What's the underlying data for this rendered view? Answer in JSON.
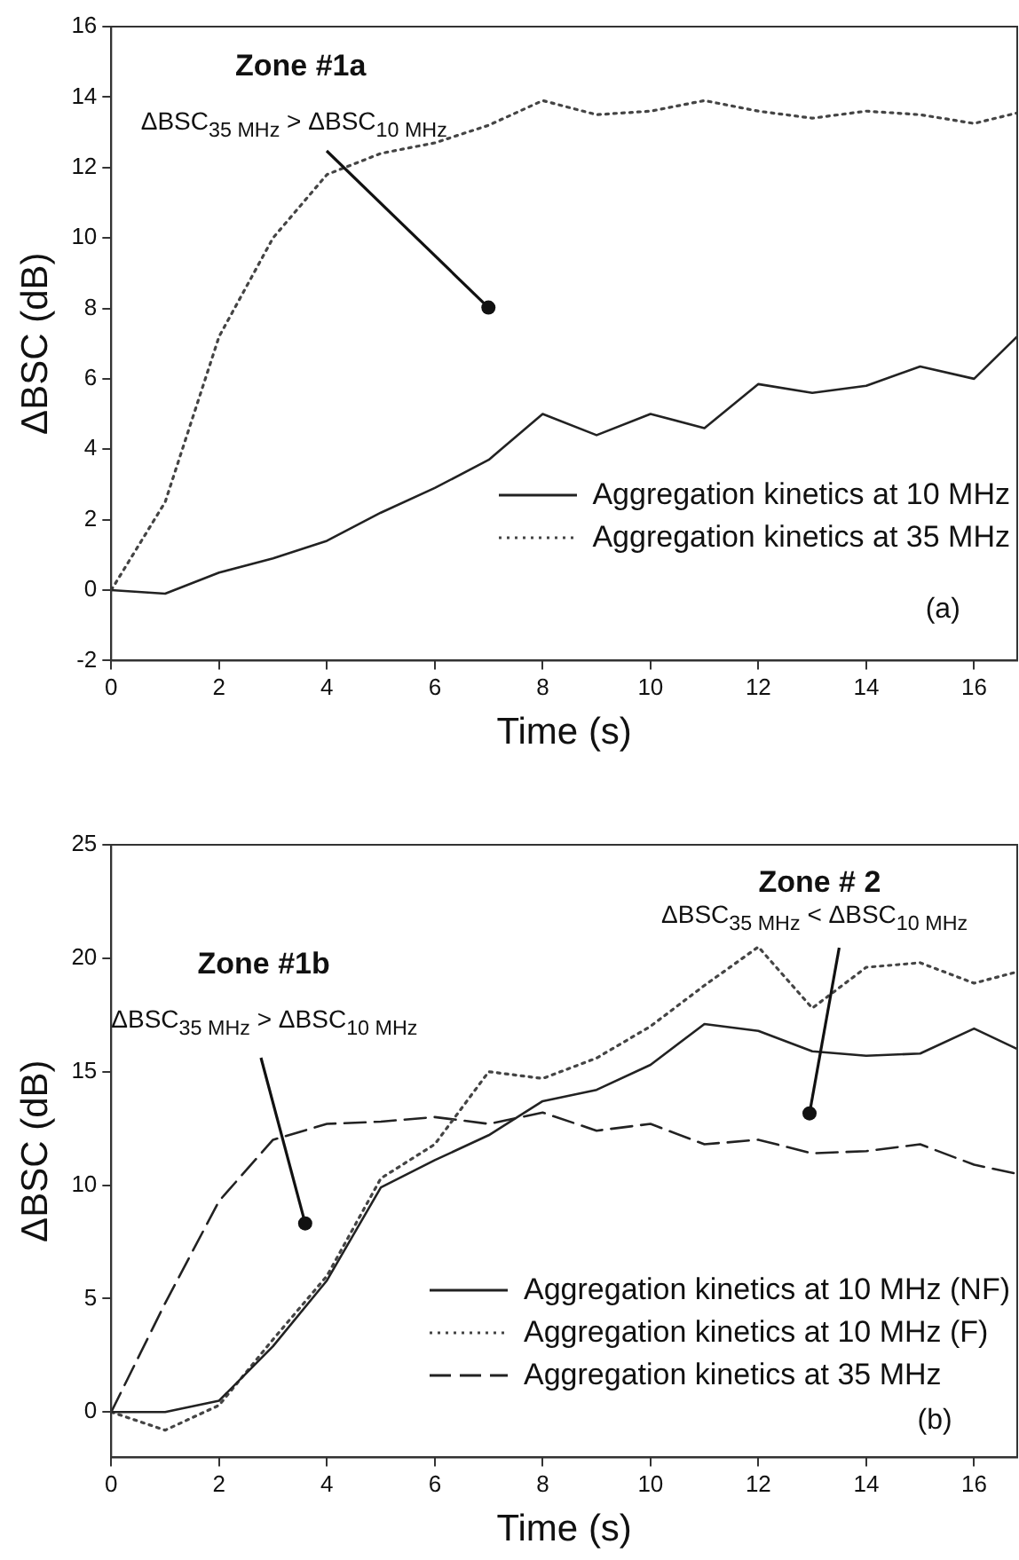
{
  "chart_data": [
    {
      "type": "line",
      "xlabel": "Time (s)",
      "ylabel": "ΔBSC (dB)",
      "x": [
        0,
        1,
        2,
        3,
        4,
        5,
        6,
        7,
        8,
        9,
        10,
        11,
        12,
        13,
        14,
        15,
        16,
        16.8
      ],
      "xlim": [
        0,
        16.8
      ],
      "xticks": [
        0,
        2,
        4,
        6,
        8,
        10,
        12,
        14,
        16
      ],
      "ylim": [
        -2,
        16
      ],
      "yticks": [
        -2,
        0,
        2,
        4,
        6,
        8,
        10,
        12,
        14,
        16
      ],
      "grid": false,
      "legend": "bottom right",
      "marker": "none",
      "series": [
        {
          "name": "Aggregation kinetics at 10 MHz",
          "color": "#222222",
          "line_style": "solid",
          "values": [
            0,
            -0.1,
            0.5,
            0.9,
            1.4,
            2.2,
            2.9,
            3.7,
            5.0,
            4.4,
            5.0,
            4.6,
            5.85,
            5.6,
            5.8,
            6.35,
            6.0,
            7.2
          ]
        },
        {
          "name": "Aggregation kinetics at 35 MHz",
          "color": "#444444",
          "line_style": "dotted",
          "values": [
            0,
            2.5,
            7.2,
            10.0,
            11.8,
            12.4,
            12.7,
            13.2,
            13.9,
            13.5,
            13.6,
            13.9,
            13.6,
            13.4,
            13.6,
            13.5,
            13.25,
            13.55
          ]
        }
      ],
      "annotations": [
        "Zone #1a",
        "ΔBSC$_{35 MHz}$ > ΔBSC$_{10 MHz}$",
        "(a)"
      ]
    },
    {
      "type": "line",
      "xlabel": "Time (s)",
      "ylabel": "ΔBSC (dB)",
      "x": [
        0,
        1,
        2,
        3,
        4,
        5,
        6,
        7,
        8,
        9,
        10,
        11,
        12,
        13,
        14,
        15,
        16,
        16.8
      ],
      "xlim": [
        0,
        16.8
      ],
      "xticks": [
        0,
        2,
        4,
        6,
        8,
        10,
        12,
        14,
        16
      ],
      "ylim": [
        -2,
        25
      ],
      "yticks": [
        0,
        5,
        10,
        15,
        20,
        25
      ],
      "grid": false,
      "legend": "bottom right",
      "marker": "none",
      "series": [
        {
          "name": "Aggregation kinetics at 10 MHz (NF)",
          "color": "#222222",
          "line_style": "solid",
          "values": [
            0,
            0,
            0.5,
            2.9,
            5.8,
            9.9,
            11.1,
            12.2,
            13.7,
            14.2,
            15.3,
            17.1,
            16.8,
            15.9,
            15.7,
            15.8,
            16.9,
            16.0
          ]
        },
        {
          "name": "Aggregation kinetics at 10 MHz (F)",
          "color": "#444444",
          "line_style": "dotted",
          "values": [
            0,
            -0.8,
            0.3,
            3.2,
            6.0,
            10.3,
            11.8,
            15.0,
            14.7,
            15.6,
            17.0,
            18.8,
            20.5,
            17.8,
            19.6,
            19.8,
            18.9,
            19.4
          ]
        },
        {
          "name": "Aggregation kinetics at 35 MHz",
          "color": "#222222",
          "line_style": "dashed",
          "values": [
            0,
            4.8,
            9.3,
            12.0,
            12.7,
            12.8,
            13.0,
            12.7,
            13.2,
            12.4,
            12.7,
            11.8,
            12.0,
            11.4,
            11.5,
            11.8,
            10.9,
            10.5
          ]
        }
      ],
      "annotations": [
        "Zone #1b",
        "ΔBSC$_{35 MHz}$ > ΔBSC$_{10 MHz}$",
        "Zone # 2",
        "ΔBSC$_{35 MHz}$ < ΔBSC$_{10 MHz}$",
        "(b)"
      ]
    }
  ]
}
